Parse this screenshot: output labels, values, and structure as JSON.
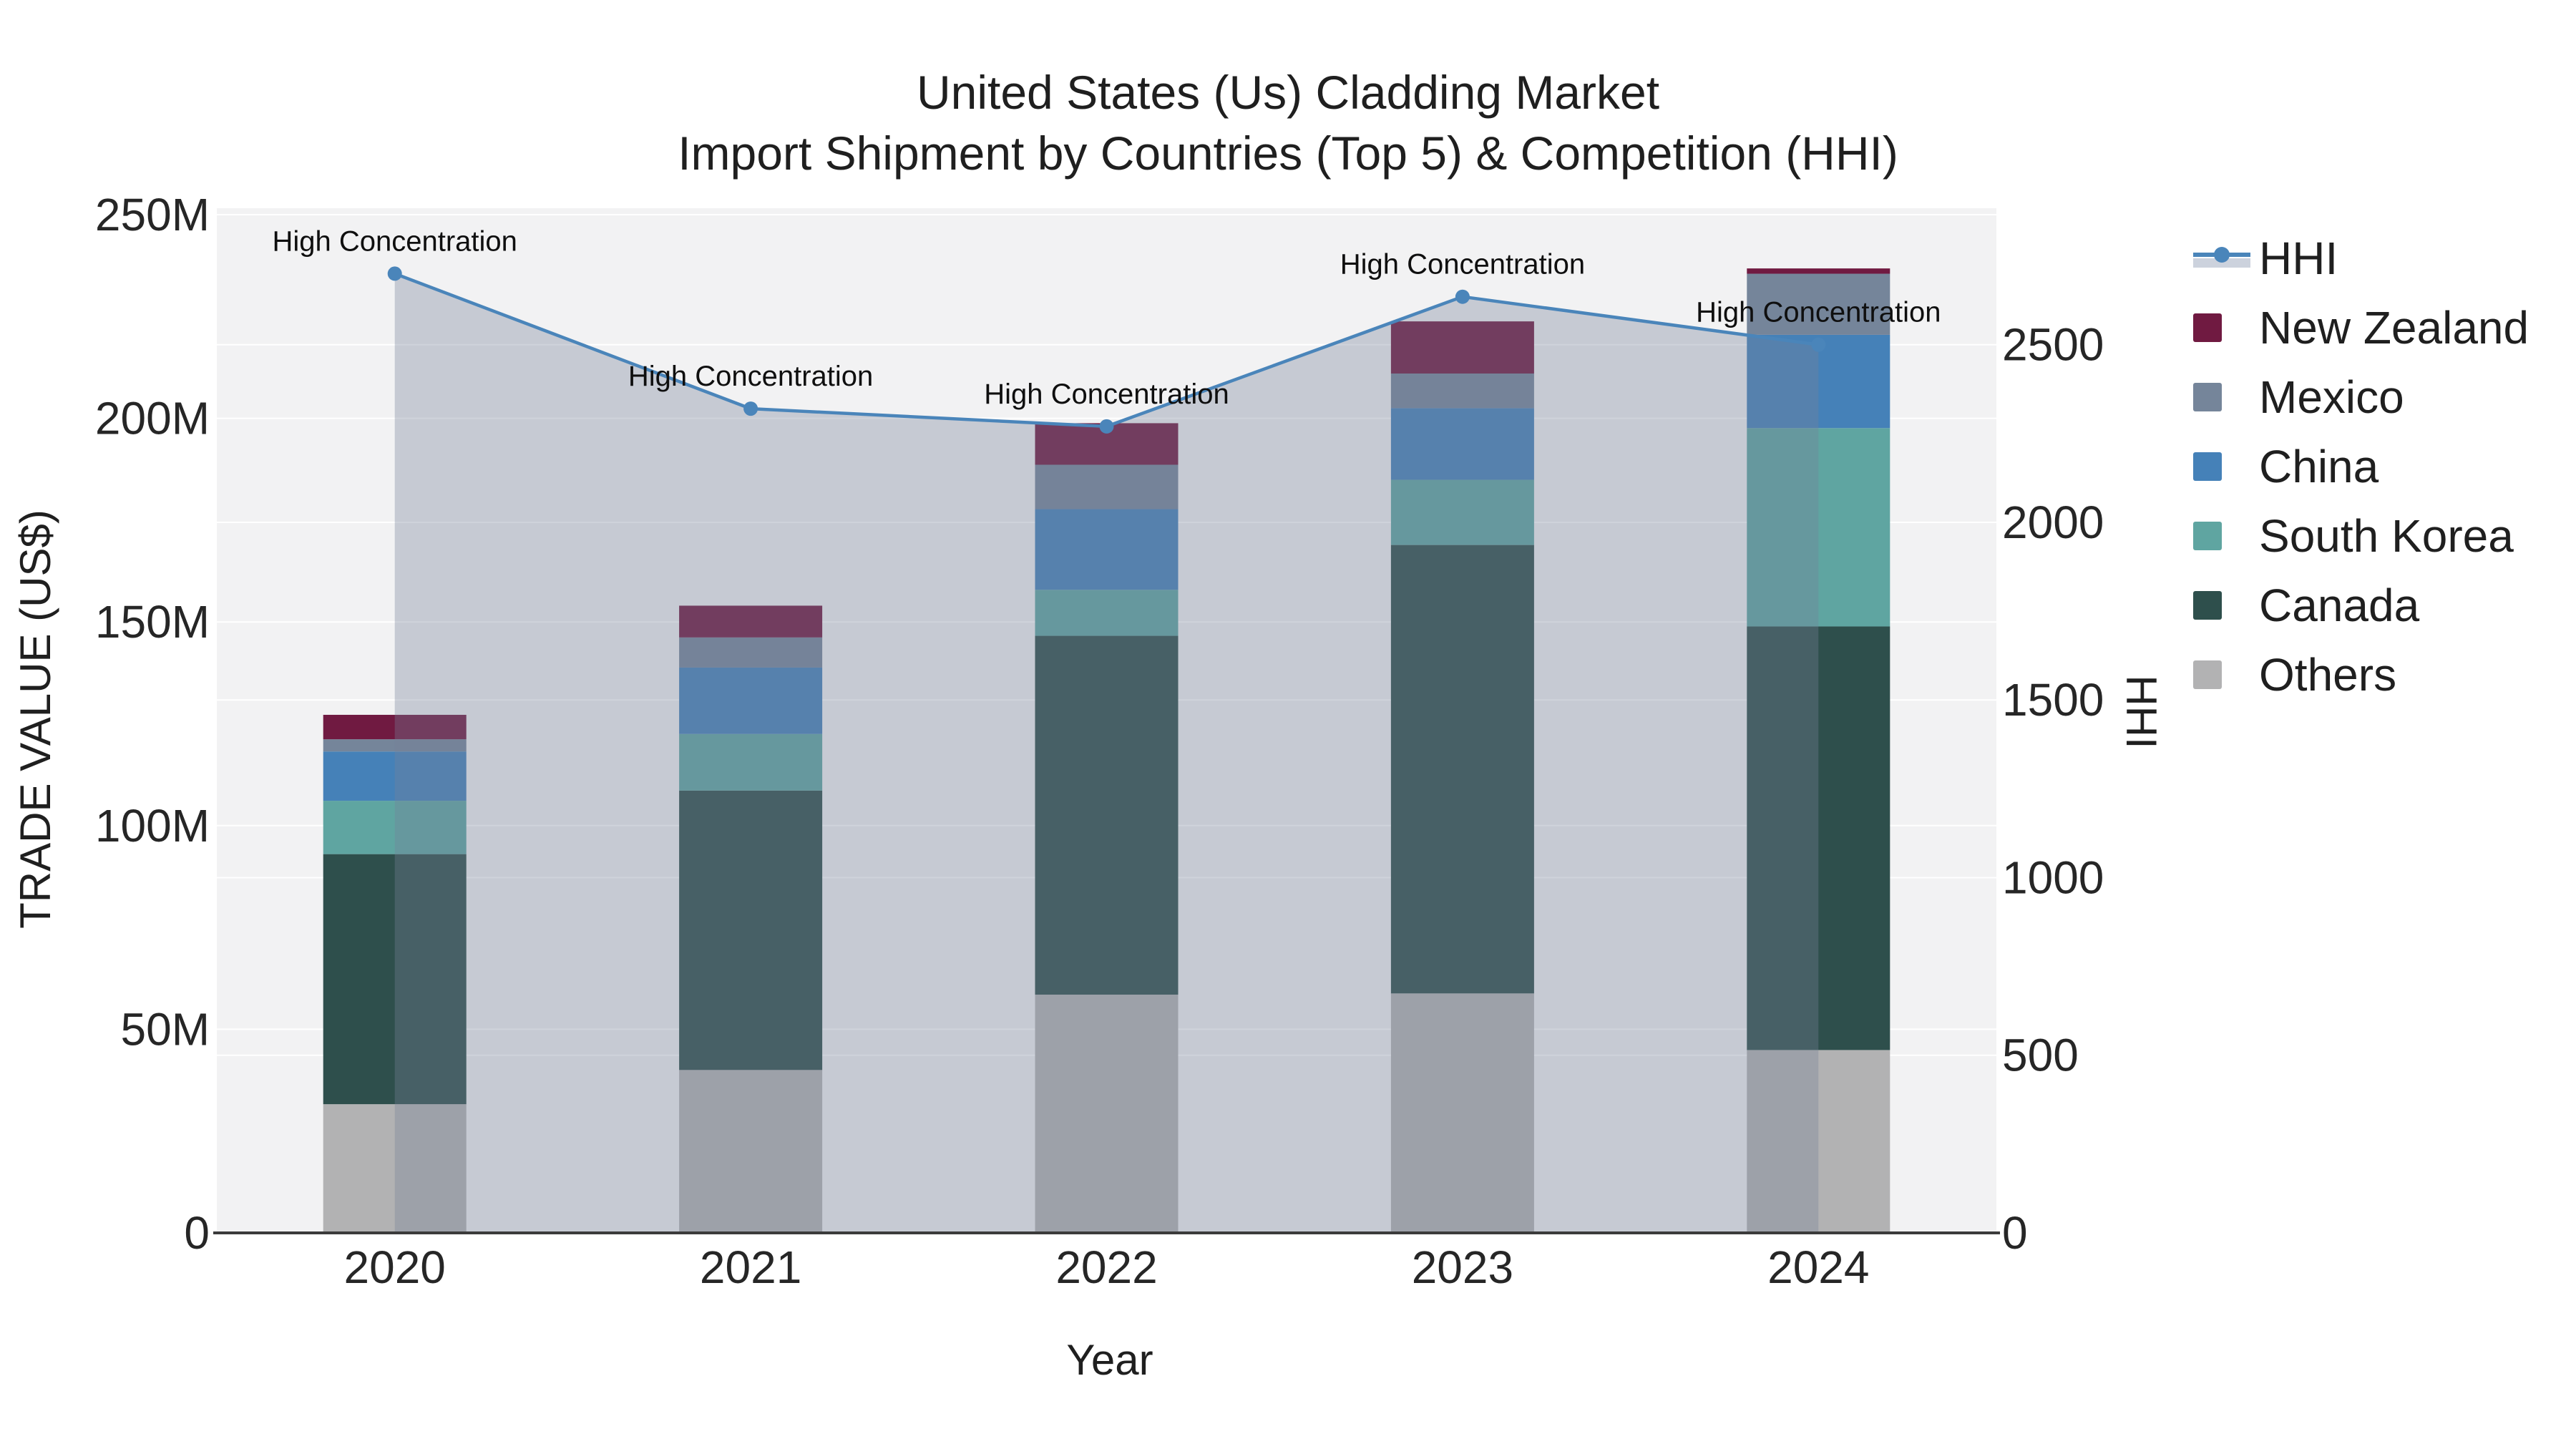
{
  "title": {
    "line1": "United States (Us) Cladding Market",
    "line2": "Import Shipment by Countries (Top 5) & Competition (HHI)"
  },
  "axes": {
    "x_title": "Year",
    "y_left_title": "TRADE VALUE (US$)",
    "y_right_title": "HHI",
    "y_left_tick_labels": [
      "0",
      "50M",
      "100M",
      "150M",
      "200M",
      "250M"
    ],
    "y_left_tick_values": [
      0,
      50,
      100,
      150,
      200,
      250
    ],
    "y_right_tick_labels": [
      "0",
      "500",
      "1000",
      "1500",
      "2000",
      "2500"
    ],
    "y_right_tick_values": [
      0,
      500,
      1000,
      1500,
      2000,
      2500
    ]
  },
  "legend": {
    "items": [
      {
        "label": "HHI",
        "type": "line",
        "color": "#4a85ba",
        "band_color": "#ccd2dd"
      },
      {
        "label": "New Zealand",
        "type": "swatch",
        "color": "#701a41"
      },
      {
        "label": "Mexico",
        "type": "swatch",
        "color": "#75859a"
      },
      {
        "label": "China",
        "type": "swatch",
        "color": "#4581b8"
      },
      {
        "label": "South Korea",
        "type": "swatch",
        "color": "#5fa5a1"
      },
      {
        "label": "Canada",
        "type": "swatch",
        "color": "#2e4f4c"
      },
      {
        "label": "Others",
        "type": "swatch",
        "color": "#b2b2b3"
      }
    ]
  },
  "chart_data": {
    "type": "bar+line",
    "unit": "US$ millions (left axis), HHI index (right axis)",
    "categories": [
      "2020",
      "2021",
      "2022",
      "2023",
      "2024"
    ],
    "bar_series": [
      {
        "name": "Others",
        "color": "#b2b2b3",
        "values": [
          31.6,
          40.0,
          58.5,
          58.8,
          44.9
        ]
      },
      {
        "name": "Canada",
        "color": "#2e4f4c",
        "values": [
          61.4,
          68.6,
          88.1,
          110.1,
          104.0
        ]
      },
      {
        "name": "South Korea",
        "color": "#5fa5a1",
        "values": [
          13.1,
          13.9,
          11.3,
          16.0,
          48.7
        ]
      },
      {
        "name": "China",
        "color": "#4581b8",
        "values": [
          12.1,
          16.3,
          19.8,
          17.6,
          22.9
        ]
      },
      {
        "name": "Mexico",
        "color": "#75859a",
        "values": [
          3.0,
          7.4,
          10.9,
          8.5,
          15.0
        ]
      },
      {
        "name": "New Zealand",
        "color": "#701a41",
        "values": [
          6.0,
          7.8,
          10.2,
          12.8,
          1.3
        ]
      }
    ],
    "bar_totals": [
      127.2,
      154.0,
      198.8,
      223.8,
      236.8
    ],
    "line_series": {
      "name": "HHI",
      "color": "#4a85ba",
      "fill_color": "rgba(118,130,152,0.35)",
      "values": [
        2700,
        2320,
        2270,
        2635,
        2500
      ]
    },
    "annotation_text": "High Concentration",
    "annotated_points": [
      "2020",
      "2021",
      "2022",
      "2023",
      "2024"
    ],
    "xlabel": "Year",
    "ylabel_left": "TRADE VALUE (US$)",
    "ylabel_right": "HHI",
    "ylim_left": [
      0,
      250
    ],
    "ylim_right": [
      0,
      2866
    ],
    "grid": true,
    "legend_position": "right",
    "colors": {
      "plot_background": "#f2f2f3",
      "gridline": "#ffffff",
      "axis_line": "#3b3b3b",
      "tick_text": "#262626",
      "annotation_text": "#0f0f0f"
    }
  }
}
